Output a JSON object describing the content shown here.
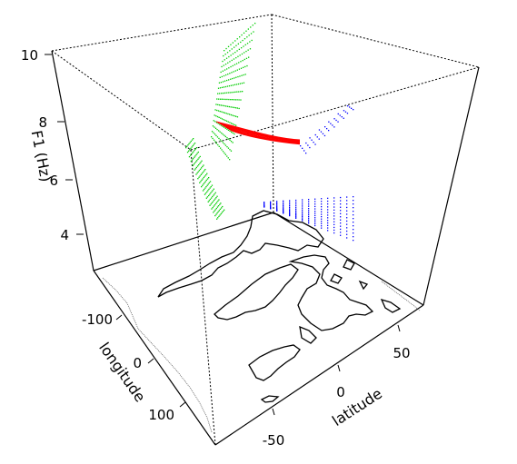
{
  "chart_data": {
    "type": "scatter3d",
    "axes": {
      "z": {
        "label": "F1 (Hz)",
        "ticks": [
          "10",
          "8",
          "6",
          "4"
        ],
        "range": [
          3,
          10
        ]
      },
      "longitude": {
        "label": "longitude",
        "ticks": [
          "-100",
          "0",
          "100"
        ],
        "range": [
          -180,
          180
        ]
      },
      "latitude": {
        "label": "latitude",
        "ticks": [
          "-50",
          "0",
          "50"
        ],
        "range": [
          -90,
          90
        ]
      }
    },
    "base_map": "world coastlines",
    "box": "dotted back edges, solid front edges",
    "series": [
      {
        "color": "#00cc00",
        "shape": "upper and lower point clouds on the left back wall"
      },
      {
        "color": "#ff0000",
        "shape": "compact line bundle in the middle"
      },
      {
        "color": "#0000ff",
        "shape": "fan of points over the map and a sparse cloud at the upper right"
      }
    ]
  }
}
